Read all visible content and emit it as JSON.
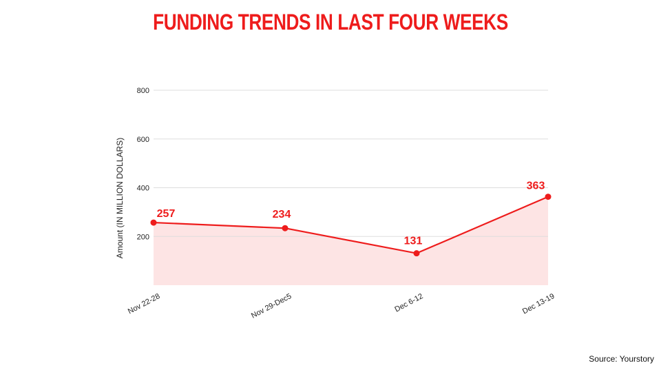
{
  "title": "FUNDING TRENDS IN LAST FOUR WEEKS",
  "source": "Source: Yourstory",
  "colors": {
    "accent": "#ee1c1c",
    "fill": "#fde4e4",
    "grid": "#dddddd"
  },
  "chart_data": {
    "type": "area",
    "categories": [
      "Nov 22-28",
      "Nov 29-Dec5",
      "Dec 6-12",
      "Dec 13-19"
    ],
    "values": [
      257,
      234,
      131,
      363
    ],
    "ylabel": "Amount (IN MILLION DOLLARS)",
    "xlabel": "",
    "ylim": [
      0,
      800
    ],
    "yticks": [
      200,
      400,
      600,
      800
    ],
    "grid": true,
    "data_labels": true
  }
}
